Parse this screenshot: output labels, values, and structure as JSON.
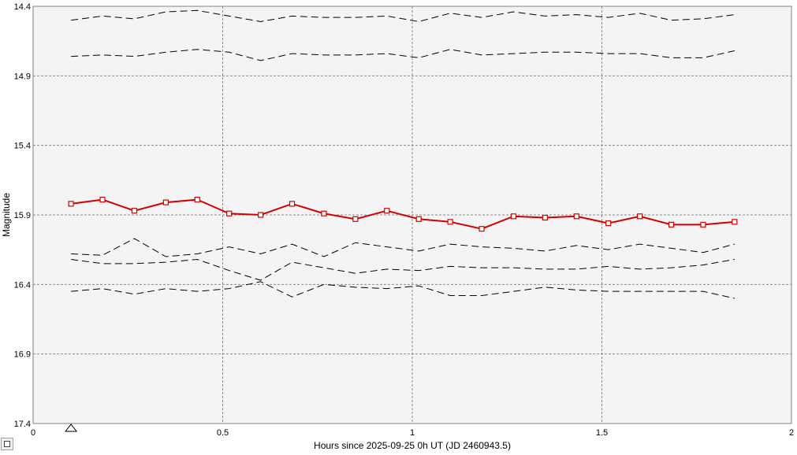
{
  "chart_data": {
    "type": "line",
    "title": "",
    "xlabel": "Hours since 2025-09-25 0h UT (JD 2460943.5)",
    "ylabel": "Magnitude",
    "xlim": [
      0,
      2
    ],
    "ylim": [
      14.4,
      17.4
    ],
    "y_inverted": true,
    "grid": true,
    "x_ticks": [
      0,
      0.5,
      1,
      1.5,
      2
    ],
    "x_tick_labels": [
      "0",
      "0.5",
      "1",
      "1.5",
      "2"
    ],
    "y_ticks": [
      14.4,
      14.9,
      15.4,
      15.9,
      16.4,
      16.9,
      17.4
    ],
    "y_tick_labels": [
      "14.4",
      "14.9",
      "15.4",
      "15.9",
      "16.4",
      "16.9",
      "17.4"
    ],
    "x": [
      0.1,
      0.183,
      0.267,
      0.35,
      0.433,
      0.517,
      0.6,
      0.683,
      0.767,
      0.85,
      0.933,
      1.017,
      1.1,
      1.183,
      1.267,
      1.35,
      1.433,
      1.517,
      1.6,
      1.683,
      1.767,
      1.85
    ],
    "target": {
      "color": "#d40000",
      "marker": "square",
      "values": [
        15.82,
        15.79,
        15.87,
        15.81,
        15.79,
        15.89,
        15.9,
        15.82,
        15.89,
        15.93,
        15.87,
        15.93,
        15.95,
        16.0,
        15.91,
        15.92,
        15.91,
        15.96,
        15.91,
        15.97,
        15.97,
        15.95
      ]
    },
    "comparison_series": [
      {
        "color": "#000000",
        "dash": "dashed",
        "values": [
          14.5,
          14.47,
          14.49,
          14.44,
          14.43,
          14.47,
          14.51,
          14.47,
          14.48,
          14.48,
          14.47,
          14.51,
          14.45,
          14.48,
          14.44,
          14.47,
          14.46,
          14.48,
          14.45,
          14.5,
          14.49,
          14.46
        ]
      },
      {
        "color": "#000000",
        "dash": "dashed",
        "values": [
          14.76,
          14.75,
          14.76,
          14.73,
          14.71,
          14.73,
          14.79,
          14.74,
          14.75,
          14.75,
          14.74,
          14.77,
          14.71,
          14.75,
          14.74,
          14.73,
          14.73,
          14.74,
          14.74,
          14.77,
          14.77,
          14.72
        ]
      },
      {
        "color": "#000000",
        "dash": "dashed",
        "values": [
          16.18,
          16.19,
          16.07,
          16.2,
          16.18,
          16.13,
          16.18,
          16.11,
          16.2,
          16.1,
          16.13,
          16.16,
          16.11,
          16.13,
          16.14,
          16.16,
          16.12,
          16.15,
          16.11,
          16.14,
          16.17,
          16.11
        ]
      },
      {
        "color": "#000000",
        "dash": "dashed",
        "values": [
          16.22,
          16.25,
          16.25,
          16.24,
          16.22,
          16.3,
          16.37,
          16.24,
          16.28,
          16.32,
          16.29,
          16.3,
          16.27,
          16.28,
          16.28,
          16.29,
          16.29,
          16.27,
          16.29,
          16.28,
          16.26,
          16.22
        ]
      },
      {
        "color": "#000000",
        "dash": "dashed",
        "values": [
          16.45,
          16.43,
          16.47,
          16.43,
          16.45,
          16.43,
          16.38,
          16.49,
          16.4,
          16.42,
          16.43,
          16.41,
          16.48,
          16.48,
          16.45,
          16.42,
          16.44,
          16.45,
          16.45,
          16.45,
          16.45,
          16.5
        ]
      }
    ],
    "markers": [
      {
        "type": "open-triangle",
        "x": 0.1,
        "location": "bottom axis"
      }
    ]
  },
  "ui": {
    "corner_button_icon": "square-icon"
  }
}
